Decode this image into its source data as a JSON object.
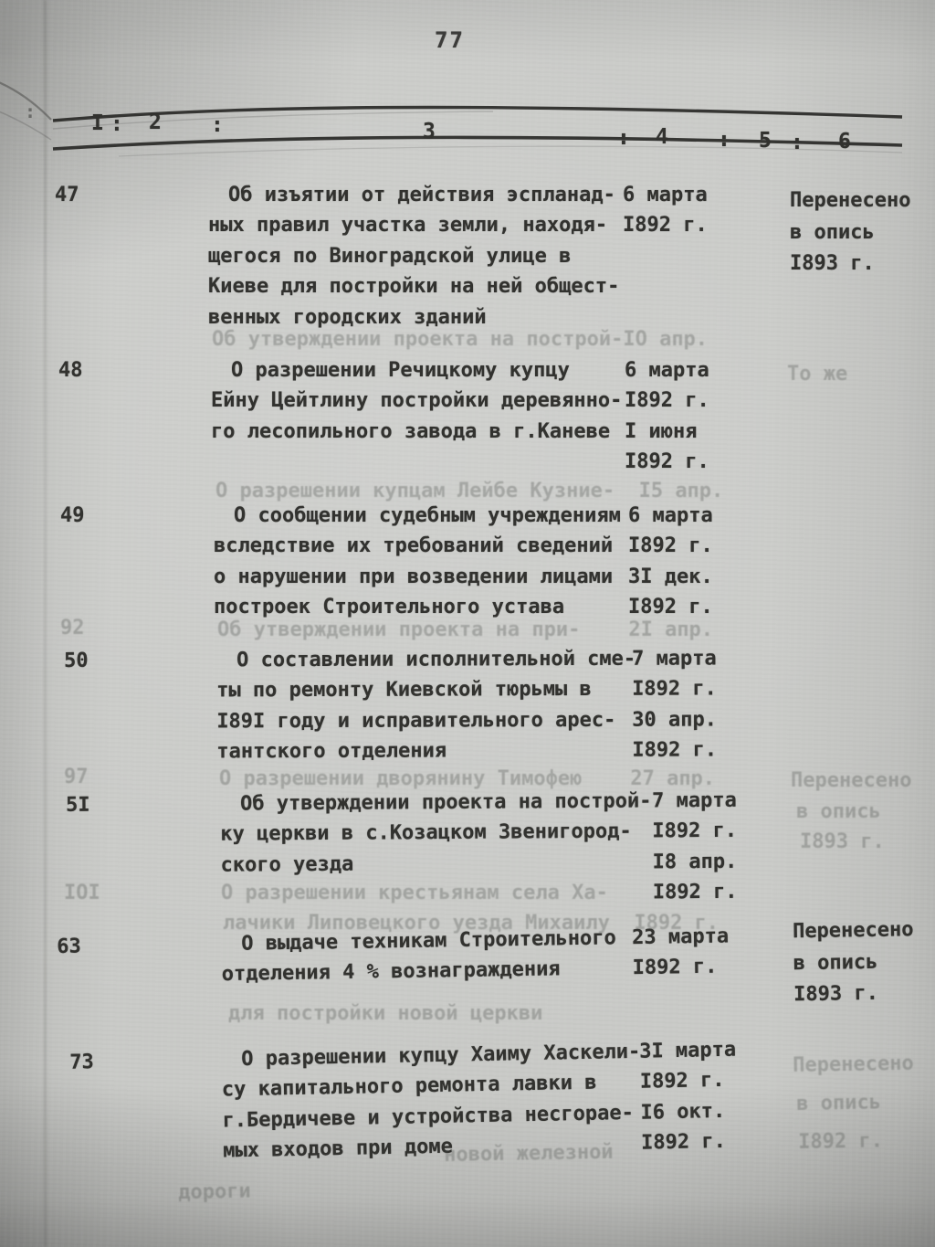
{
  "page": {
    "number": "77"
  },
  "marginalia": {
    "left_edge_colon": ":"
  },
  "table": {
    "columns": [
      "I",
      ":",
      "2",
      ":",
      "3",
      ":",
      "4",
      ":",
      "5",
      ":",
      "6"
    ],
    "rows": [
      {
        "no": "47",
        "subject": [
          "Об изъятии от действия эспланад-",
          "ных правил участка земли, находя-",
          "щегося по Виноградской улице в",
          "Киеве для постройки на ней общест-",
          "венных городских зданий"
        ],
        "dates": [
          "6 марта",
          "I892 г."
        ],
        "note": [
          "Перенесено",
          "в опись",
          "I893 г."
        ]
      },
      {
        "no": "48",
        "subject": [
          "О разрешении Речицкому купцу",
          "Ейну Цейтлину постройки деревянно-",
          "го лесопильного завода в г.Каневе"
        ],
        "dates": [
          "6 марта",
          "I892 г.",
          "I июня",
          "I892 г."
        ],
        "note": []
      },
      {
        "no": "49",
        "subject": [
          "О сообщении судебным учреждениям",
          "вследствие их требований сведений",
          "о нарушении при возведении лицами",
          "построек Строительного устава"
        ],
        "dates": [
          "6 марта",
          "I892 г.",
          "3I дек.",
          "I892 г."
        ],
        "note": []
      },
      {
        "no": "50",
        "subject": [
          "О составлении исполнительной сме-",
          "ты по ремонту Киевской тюрьмы в",
          "I89I году и исправительного арес-",
          "тантского отделения"
        ],
        "dates": [
          "7 марта",
          "I892 г.",
          "30 апр.",
          "I892 г."
        ],
        "note": []
      },
      {
        "no": "5I",
        "subject": [
          "Об утверждении проекта на построй-",
          "ку церкви в с.Козацком Звенигород-",
          "ского уезда"
        ],
        "dates": [
          "7 марта",
          "I892 г.",
          "I8 апр.",
          "I892 г."
        ],
        "note": []
      },
      {
        "no": "63",
        "subject": [
          "О выдаче техникам Строительного",
          "отделения 4 % вознаграждения"
        ],
        "dates": [
          "23 марта",
          "I892 г."
        ],
        "note": [
          "Перенесено",
          "в опись",
          "I893 г."
        ]
      },
      {
        "no": "73",
        "subject": [
          "О разрешении купцу Хаиму Хаскели-",
          "су капитального ремонта лавки в",
          "г.Бердичеве и устройства несгорае-",
          "мых входов при доме"
        ],
        "dates": [
          "3I марта",
          "I892 г.",
          "I6 окт.",
          "I892 г."
        ],
        "note": []
      }
    ]
  },
  "bleedthrough": [
    "Об утверждении проекта на построй-IO апр.",
    "То же",
    "О разрешении купцам Лейбе Кузние-  I5 апр.",
    "92",
    "Об утверждении проекта на при-    2I апр.",
    "97",
    "О разрешении дворянину Тимофею    27 апр.",
    "Перенесено",
    "в опись",
    "I893 г.",
    "IOI",
    "О разрешении крестьянам села Ха-",
    "лачики Липовецкого уезда Михаилу  I892 г.",
    "для постройки новой церкви",
    "Перенесено",
    "в опись",
    "I892 г.",
    "новой железной",
    "дороги"
  ]
}
